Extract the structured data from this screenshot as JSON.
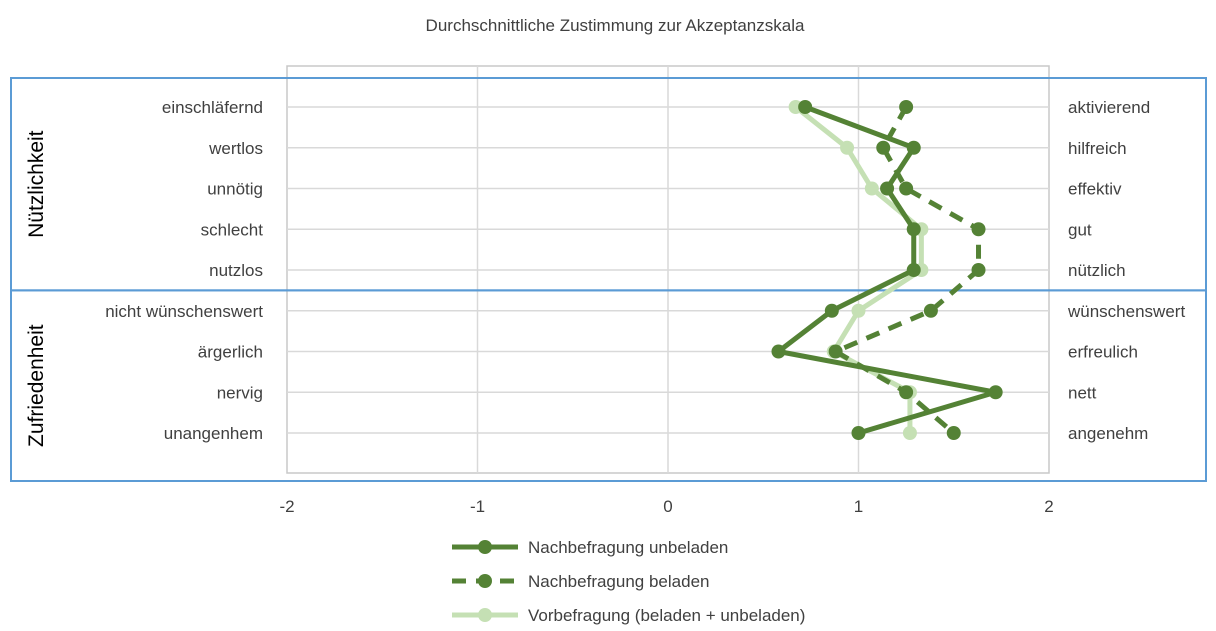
{
  "chart_data": {
    "type": "line",
    "title": "Durchschnittliche Zustimmung zur Akzeptanzskala",
    "xlim": [
      -2,
      2
    ],
    "xticks": [
      -2,
      -1,
      0,
      1,
      2
    ],
    "xtick_labels": [
      "-2",
      "-1",
      "0",
      "1",
      "2"
    ],
    "grid": true,
    "legend_position": "bottom",
    "left_labels": [
      "einschläfernd",
      "wertlos",
      "unnötig",
      "schlecht",
      "nutzlos",
      "nicht wünschenswert",
      "ärgerlich",
      "nervig",
      "unangenhem"
    ],
    "right_labels": [
      "aktivierend",
      "hilfreich",
      "effektiv",
      "gut",
      "nützlich",
      "wünschenswert",
      "erfreulich",
      "nett",
      "angenehm"
    ],
    "groups": [
      {
        "label": "Nützlichkeit",
        "items": 5
      },
      {
        "label": "Zufriedenheit",
        "items": 4
      }
    ],
    "series": [
      {
        "name": "Nachbefragung unbeladen",
        "color": "#548235",
        "dash": "solid",
        "values": [
          0.72,
          1.29,
          1.15,
          1.29,
          1.29,
          0.86,
          0.58,
          1.72,
          1.0
        ]
      },
      {
        "name": "Nachbefragung beladen",
        "color": "#548235",
        "dash": "dashed",
        "values": [
          1.25,
          1.13,
          1.25,
          1.63,
          1.63,
          1.38,
          0.88,
          1.25,
          1.5
        ]
      },
      {
        "name": "Vorbefragung (beladen + unbeladen)",
        "color": "#C5E0B4",
        "dash": "solid",
        "values": [
          0.67,
          0.94,
          1.07,
          1.33,
          1.33,
          1.0,
          0.87,
          1.27,
          1.27
        ]
      }
    ]
  }
}
